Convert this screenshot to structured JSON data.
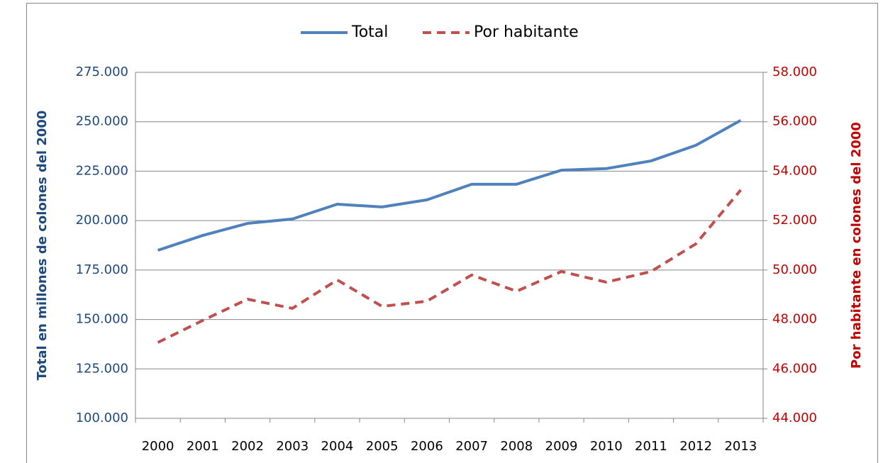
{
  "chart_data": {
    "type": "line",
    "categories": [
      "2000",
      "2001",
      "2002",
      "2003",
      "2004",
      "2005",
      "2006",
      "2007",
      "2008",
      "2009",
      "2010",
      "2011",
      "2012",
      "2013"
    ],
    "series": [
      {
        "name": "Total",
        "color": "#4f81bd",
        "dashed": false,
        "values": [
          185000,
          192500,
          198600,
          200800,
          208300,
          206900,
          210500,
          218400,
          218400,
          225500,
          226300,
          230200,
          238100,
          250700
        ]
      },
      {
        "name": "Por habitante",
        "color": "#c0504d",
        "dashed": true,
        "axis": "y2",
        "values": [
          47070,
          47960,
          48820,
          48450,
          49600,
          48530,
          48740,
          49800,
          49140,
          49940,
          49510,
          49940,
          51060,
          53240
        ]
      }
    ],
    "ylabel": "Total en millones de colones del 2000",
    "y2label": "Por habitante en colones del 2000",
    "ylim": [
      100000,
      275000
    ],
    "yticks": [
      {
        "value": 100000,
        "label": "100.000"
      },
      {
        "value": 125000,
        "label": "125.000"
      },
      {
        "value": 150000,
        "label": "150.000"
      },
      {
        "value": 175000,
        "label": "175.000"
      },
      {
        "value": 200000,
        "label": "200.000"
      },
      {
        "value": 225000,
        "label": "225.000"
      },
      {
        "value": 250000,
        "label": "250.000"
      },
      {
        "value": 275000,
        "label": "275.000"
      }
    ],
    "y2lim": [
      44000,
      58000
    ],
    "y2ticks": [
      {
        "value": 44000,
        "label": "44.000"
      },
      {
        "value": 46000,
        "label": "46.000"
      },
      {
        "value": 48000,
        "label": "48.000"
      },
      {
        "value": 50000,
        "label": "50.000"
      },
      {
        "value": 52000,
        "label": "52.000"
      },
      {
        "value": 54000,
        "label": "54.000"
      },
      {
        "value": 56000,
        "label": "56.000"
      },
      {
        "value": 58000,
        "label": "58.000"
      }
    ],
    "grid": true,
    "legend": "top"
  }
}
